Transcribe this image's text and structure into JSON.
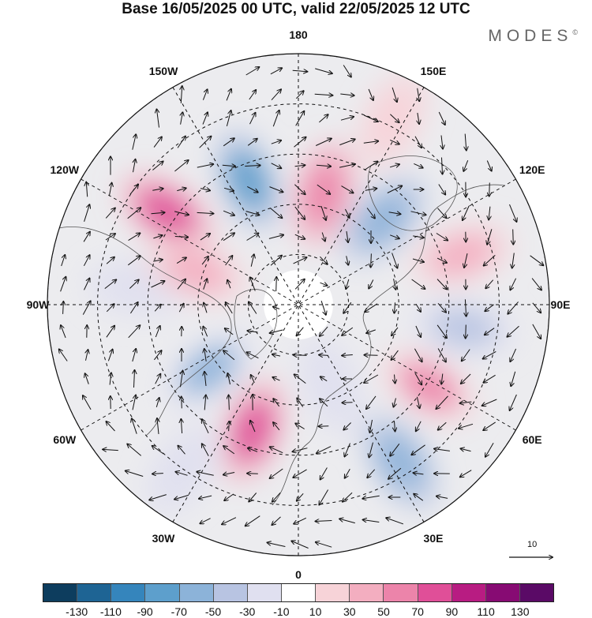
{
  "title": "Base 16/05/2025 00 UTC, valid 22/05/2025 12 UTC",
  "brand": "MODES",
  "brand_mark": "©",
  "longitude_labels": [
    {
      "id": "lon-180",
      "text": "180",
      "angle": 180
    },
    {
      "id": "lon-150e",
      "text": "150E",
      "angle": 150
    },
    {
      "id": "lon-120e",
      "text": "120E",
      "angle": 120
    },
    {
      "id": "lon-90e",
      "text": "90E",
      "angle": 90
    },
    {
      "id": "lon-60e",
      "text": "60E",
      "angle": 60
    },
    {
      "id": "lon-30e",
      "text": "30E",
      "angle": 30
    },
    {
      "id": "lon-0",
      "text": "0",
      "angle": 0
    },
    {
      "id": "lon-30w",
      "text": "30W",
      "angle": -30
    },
    {
      "id": "lon-60w",
      "text": "60W",
      "angle": -60
    },
    {
      "id": "lon-90w",
      "text": "90W",
      "angle": -90
    },
    {
      "id": "lon-120w",
      "text": "120W",
      "angle": -120
    },
    {
      "id": "lon-150w",
      "text": "150W",
      "angle": -150
    }
  ],
  "reference_vector_label": "10",
  "colorbar": {
    "colors": [
      "#0d3d5e",
      "#1e6494",
      "#3585bc",
      "#5d9fcc",
      "#8cb3d9",
      "#b8c4e2",
      "#e0e0f0",
      "#ffffff",
      "#f7d3d8",
      "#f3aec0",
      "#ec84aa",
      "#e04f98",
      "#b81c82",
      "#870b73",
      "#5a0a66"
    ],
    "ticks": [
      "-130",
      "-110",
      "-90",
      "-70",
      "-50",
      "-30",
      "-10",
      "10",
      "30",
      "50",
      "70",
      "90",
      "110",
      "130"
    ]
  },
  "anomaly_centers": [
    {
      "id": "anomaly-neg-1",
      "lon": -158,
      "colat": 40,
      "value": -90
    },
    {
      "id": "anomaly-pos-1",
      "lon": 167,
      "colat": 34,
      "value": 60
    },
    {
      "id": "anomaly-neg-2",
      "lon": 135,
      "colat": 36,
      "value": -70
    },
    {
      "id": "anomaly-pos-2",
      "lon": -125,
      "colat": 48,
      "value": 70
    },
    {
      "id": "anomaly-pos-3",
      "lon": 107,
      "colat": 51,
      "value": 40
    },
    {
      "id": "anomaly-neg-3",
      "lon": 82,
      "colat": 50,
      "value": -40
    },
    {
      "id": "anomaly-pos-4",
      "lon": 58,
      "colat": 46,
      "value": 50
    },
    {
      "id": "anomaly-neg-4",
      "lon": 33,
      "colat": 56,
      "value": -70
    },
    {
      "id": "anomaly-neg-5",
      "lon": 22,
      "colat": 26,
      "value": -30
    },
    {
      "id": "anomaly-pos-5",
      "lon": -20,
      "colat": 40,
      "value": 80
    },
    {
      "id": "anomaly-neg-6",
      "lon": -54,
      "colat": 33,
      "value": -60
    },
    {
      "id": "anomaly-neg-7",
      "lon": -96,
      "colat": 48,
      "value": -30
    },
    {
      "id": "anomaly-pos-6",
      "lon": -108,
      "colat": 32,
      "value": 30
    },
    {
      "id": "anomaly-neg-8",
      "lon": -35,
      "colat": 60,
      "value": -20
    },
    {
      "id": "anomaly-pos-7",
      "lon": 153,
      "colat": 62,
      "value": 20
    }
  ]
}
